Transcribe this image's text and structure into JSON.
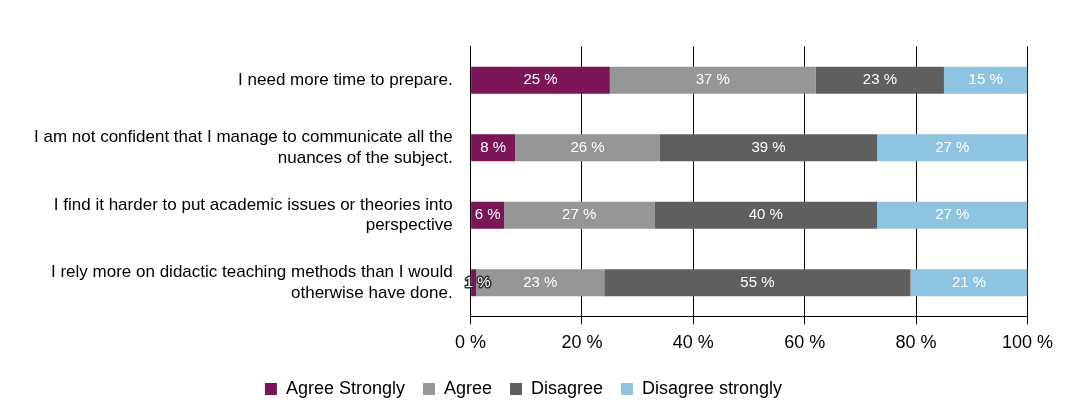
{
  "chart_data": {
    "type": "bar",
    "orientation": "horizontal",
    "stacked": true,
    "categories": [
      "I need more time to prepare.",
      "I am not confident that I manage to communicate all the nuances of the subject.",
      "I find it harder to put academic issues or theories into perspective",
      "I rely more on didactic teaching methods than I would otherwise have done."
    ],
    "series": [
      {
        "name": "Agree Strongly",
        "color": "#7b1557",
        "values": [
          25,
          8,
          6,
          1
        ],
        "value_labels": [
          "25 %",
          "8 %",
          "6 %",
          "1 %"
        ]
      },
      {
        "name": "Agree",
        "color": "#969696",
        "values": [
          37,
          26,
          27,
          23
        ],
        "value_labels": [
          "37 %",
          "26 %",
          "27 %",
          "23 %"
        ]
      },
      {
        "name": "Disagree",
        "color": "#5f5f5f",
        "values": [
          23,
          39,
          40,
          55
        ],
        "value_labels": [
          "23 %",
          "39 %",
          "40 %",
          "55 %"
        ]
      },
      {
        "name": "Disagree strongly",
        "color": "#8ec4e2",
        "values": [
          15,
          27,
          27,
          21
        ],
        "value_labels": [
          "15 %",
          "27 %",
          "27 %",
          "21 %"
        ]
      }
    ],
    "xlim": [
      0,
      100
    ],
    "xticks": [
      {
        "value": 0,
        "label": "0 %"
      },
      {
        "value": 20,
        "label": "20 %"
      },
      {
        "value": 40,
        "label": "40 %"
      },
      {
        "value": 60,
        "label": "60 %"
      },
      {
        "value": 80,
        "label": "80 %"
      },
      {
        "value": 100,
        "label": "100 %"
      }
    ],
    "grid": "x",
    "legend": "bottom"
  }
}
